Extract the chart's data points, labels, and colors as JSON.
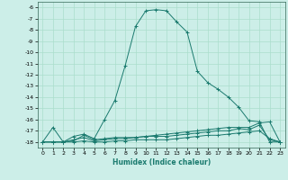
{
  "xlabel": "Humidex (Indice chaleur)",
  "ylabel": "",
  "bg_color": "#cceee8",
  "grid_color": "#aaddcc",
  "line_color": "#1a7a6e",
  "xlim": [
    -0.5,
    23.5
  ],
  "ylim": [
    -18.5,
    -5.5
  ],
  "yticks": [
    -18,
    -17,
    -16,
    -15,
    -14,
    -13,
    -12,
    -11,
    -10,
    -9,
    -8,
    -7,
    -6
  ],
  "xticks": [
    0,
    1,
    2,
    3,
    4,
    5,
    6,
    7,
    8,
    9,
    10,
    11,
    12,
    13,
    14,
    15,
    16,
    17,
    18,
    19,
    20,
    21,
    22,
    23
  ],
  "curves": [
    {
      "x": [
        0,
        1,
        2,
        3,
        4,
        5,
        6,
        7,
        8,
        9,
        10,
        11,
        12,
        13,
        14,
        15,
        16,
        17,
        18,
        19,
        20,
        21,
        22,
        23
      ],
      "y": [
        -18,
        -16.7,
        -18,
        -17.5,
        -17.3,
        -17.7,
        -16.0,
        -14.3,
        -11.2,
        -7.7,
        -6.3,
        -6.2,
        -6.3,
        -7.3,
        -8.2,
        -11.7,
        -12.7,
        -13.3,
        -14.0,
        -14.9,
        -16.1,
        -16.2,
        -18.0,
        -18.0
      ]
    },
    {
      "x": [
        0,
        1,
        2,
        3,
        4,
        5,
        6,
        7,
        8,
        9,
        10,
        11,
        12,
        13,
        14,
        15,
        16,
        17,
        18,
        19,
        20,
        21,
        22,
        23
      ],
      "y": [
        -18,
        -18,
        -18,
        -17.9,
        -17.4,
        -17.8,
        -17.7,
        -17.6,
        -17.6,
        -17.6,
        -17.5,
        -17.4,
        -17.3,
        -17.2,
        -17.1,
        -17.0,
        -16.9,
        -16.8,
        -16.7,
        -16.7,
        -16.7,
        -16.3,
        -16.2,
        -18.0
      ]
    },
    {
      "x": [
        0,
        1,
        2,
        3,
        4,
        5,
        6,
        7,
        8,
        9,
        10,
        11,
        12,
        13,
        14,
        15,
        16,
        17,
        18,
        19,
        20,
        21,
        22,
        23
      ],
      "y": [
        -18,
        -18,
        -18,
        -17.8,
        -17.6,
        -17.9,
        -17.8,
        -17.7,
        -17.7,
        -17.6,
        -17.5,
        -17.5,
        -17.5,
        -17.4,
        -17.3,
        -17.2,
        -17.1,
        -17.0,
        -17.0,
        -16.8,
        -16.9,
        -16.5,
        -17.8,
        -18.0
      ]
    },
    {
      "x": [
        0,
        1,
        2,
        3,
        4,
        5,
        6,
        7,
        8,
        9,
        10,
        11,
        12,
        13,
        14,
        15,
        16,
        17,
        18,
        19,
        20,
        21,
        22,
        23
      ],
      "y": [
        -18,
        -18,
        -18,
        -18.0,
        -17.9,
        -18.0,
        -18.0,
        -17.9,
        -17.9,
        -17.8,
        -17.8,
        -17.8,
        -17.8,
        -17.7,
        -17.6,
        -17.5,
        -17.4,
        -17.4,
        -17.3,
        -17.2,
        -17.1,
        -17.0,
        -17.7,
        -18.0
      ]
    }
  ]
}
